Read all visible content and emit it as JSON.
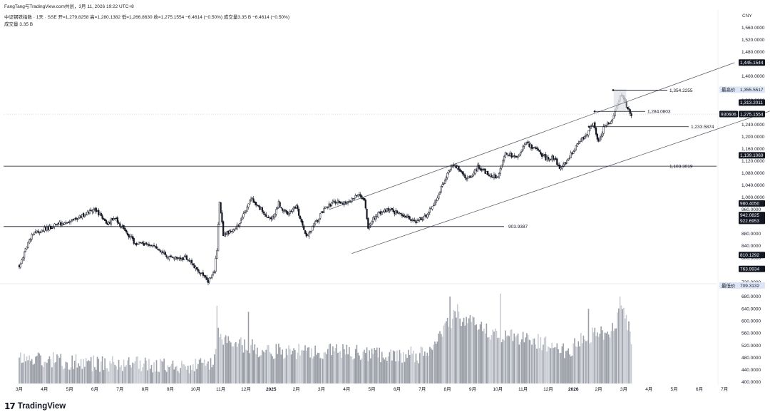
{
  "header": {
    "title": "FangTang与TradingView.com共创，3月 11, 2026 19:22 UTC+8",
    "ohlc": "中证钢铁指数 · 1天 · SSE  开=1,279.8258  高=1,280.1382  低=1,266.8630  收=1,275.1554  −6.4614 (−0.50%)  成交量3.35 B  −6.4614 (−0.50%)",
    "volume": "成交量  3.35 B",
    "currency": "CNY"
  },
  "footer": {
    "logo": "17",
    "brand": "TradingView"
  },
  "chart_data": {
    "type": "candlestick",
    "symbol": "930606",
    "price_axis": {
      "ticks": [
        "1,560.0000",
        "1,520.0000",
        "1,480.0000",
        "1,440.0000",
        "1,400.0000",
        "1,360.0000",
        "1,320.0000",
        "1,280.0000",
        "1,240.0000",
        "1,200.0000",
        "1,160.0000",
        "1,120.0000",
        "1,080.0000",
        "1,040.0000",
        "1,000.0000",
        "960.0000",
        "920.0000",
        "880.0000",
        "840.0000",
        "800.0000",
        "760.0000",
        "720.0000"
      ],
      "tick_values": [
        1560,
        1520,
        1480,
        1440,
        1400,
        1360,
        1320,
        1280,
        1240,
        1200,
        1160,
        1120,
        1080,
        1040,
        1000,
        960,
        920,
        880,
        840,
        800,
        760,
        720
      ],
      "range": [
        706,
        1580
      ]
    },
    "volume_axis": {
      "ticks": [
        "680.0000",
        "640.0000",
        "600.0000",
        "560.0000",
        "520.0000",
        "480.0000",
        "440.0000",
        "400.0000"
      ],
      "tick_values": [
        680,
        640,
        600,
        560,
        520,
        480,
        440,
        400
      ],
      "range": [
        396,
        700
      ]
    },
    "x_axis": {
      "labels": [
        "3月",
        "4月",
        "5月",
        "6月",
        "7月",
        "8月",
        "9月",
        "10月",
        "11月",
        "12月",
        "2025",
        "2月",
        "3月",
        "4月",
        "5月",
        "6月",
        "7月",
        "8月",
        "9月",
        "10月",
        "11月",
        "12月",
        "2026",
        "2月",
        "3月",
        "4月",
        "5月",
        "6月",
        "7月"
      ],
      "bold": [
        "2025",
        "2026"
      ]
    },
    "price_tags": [
      {
        "value": 1445.1544,
        "label": "1,445.1544",
        "style": "dark"
      },
      {
        "value": 1313.2011,
        "label": "1,313.2011",
        "style": "dark"
      },
      {
        "value": 1275.1554,
        "label": "1,275.1554",
        "style": "dark",
        "prefix": "930606"
      },
      {
        "value": 1139.1069,
        "label": "1,139.1069",
        "style": "dark"
      },
      {
        "value": 980.405,
        "label": "980.4050",
        "style": "dark"
      },
      {
        "value": 942.0825,
        "label": "942.0825",
        "style": "dark"
      },
      {
        "value": 922.6953,
        "label": "922.6953",
        "style": "dark"
      },
      {
        "value": 810.1292,
        "label": "810.1292",
        "style": "dark"
      },
      {
        "value": 763.9934,
        "label": "763.9934",
        "style": "dark"
      },
      {
        "value": 1355.5517,
        "label": "1,355.5517",
        "style": "light",
        "prefix": "最高价"
      },
      {
        "value": 709.3132,
        "label": "709.3132",
        "style": "light",
        "prefix": "最低价"
      }
    ],
    "horizontal_levels": [
      {
        "value": 1103.3019,
        "label": "1,103.3019",
        "extent": "full"
      },
      {
        "value": 903.9387,
        "label": "903.9387",
        "extent": "to-mid"
      },
      {
        "value": 1354.2255,
        "label": "1,354.2255",
        "extent": "ray"
      },
      {
        "value": 1284.0803,
        "label": "1,284.0803",
        "extent": "ray"
      },
      {
        "value": 1233.5874,
        "label": "1,233.5874",
        "extent": "ray"
      }
    ],
    "channel": {
      "upper": [
        {
          "month": 12.3,
          "value": 960
        },
        {
          "month": 28.4,
          "value": 1445
        }
      ],
      "lower": [
        {
          "month": 13.2,
          "value": 815
        },
        {
          "month": 29.8,
          "value": 1285
        }
      ]
    },
    "anchors": [
      {
        "month": 0.0,
        "value": 775
      },
      {
        "month": 0.5,
        "value": 880
      },
      {
        "month": 1.5,
        "value": 910
      },
      {
        "month": 2.4,
        "value": 935
      },
      {
        "month": 3.0,
        "value": 960
      },
      {
        "month": 3.5,
        "value": 915
      },
      {
        "month": 3.8,
        "value": 930
      },
      {
        "month": 4.2,
        "value": 890
      },
      {
        "month": 4.6,
        "value": 850
      },
      {
        "month": 5.4,
        "value": 840
      },
      {
        "month": 6.0,
        "value": 800
      },
      {
        "month": 6.6,
        "value": 800
      },
      {
        "month": 7.0,
        "value": 770
      },
      {
        "month": 7.4,
        "value": 735
      },
      {
        "month": 7.5,
        "value": 720
      },
      {
        "month": 7.75,
        "value": 760
      },
      {
        "month": 7.85,
        "value": 830
      },
      {
        "month": 7.95,
        "value": 990
      },
      {
        "month": 8.1,
        "value": 880
      },
      {
        "month": 8.5,
        "value": 890
      },
      {
        "month": 8.8,
        "value": 920
      },
      {
        "month": 9.2,
        "value": 1000
      },
      {
        "month": 9.6,
        "value": 960
      },
      {
        "month": 10.0,
        "value": 925
      },
      {
        "month": 10.3,
        "value": 980
      },
      {
        "month": 10.6,
        "value": 945
      },
      {
        "month": 11.0,
        "value": 970
      },
      {
        "month": 11.4,
        "value": 870
      },
      {
        "month": 11.8,
        "value": 920
      },
      {
        "month": 12.1,
        "value": 960
      },
      {
        "month": 12.5,
        "value": 985
      },
      {
        "month": 13.0,
        "value": 980
      },
      {
        "month": 13.4,
        "value": 1010
      },
      {
        "month": 13.7,
        "value": 995
      },
      {
        "month": 13.85,
        "value": 900
      },
      {
        "month": 14.1,
        "value": 935
      },
      {
        "month": 14.5,
        "value": 960
      },
      {
        "month": 15.0,
        "value": 950
      },
      {
        "month": 15.4,
        "value": 935
      },
      {
        "month": 15.8,
        "value": 920
      },
      {
        "month": 16.2,
        "value": 945
      },
      {
        "month": 16.6,
        "value": 1000
      },
      {
        "month": 16.9,
        "value": 1060
      },
      {
        "month": 17.2,
        "value": 1110
      },
      {
        "month": 17.5,
        "value": 1090
      },
      {
        "month": 17.8,
        "value": 1060
      },
      {
        "month": 18.2,
        "value": 1100
      },
      {
        "month": 18.6,
        "value": 1080
      },
      {
        "month": 19.0,
        "value": 1065
      },
      {
        "month": 19.3,
        "value": 1150
      },
      {
        "month": 19.7,
        "value": 1130
      },
      {
        "month": 20.1,
        "value": 1180
      },
      {
        "month": 20.5,
        "value": 1160
      },
      {
        "month": 20.9,
        "value": 1130
      },
      {
        "month": 21.2,
        "value": 1130
      },
      {
        "month": 21.5,
        "value": 1095
      },
      {
        "month": 21.8,
        "value": 1125
      },
      {
        "month": 22.2,
        "value": 1185
      },
      {
        "month": 22.5,
        "value": 1200
      },
      {
        "month": 22.8,
        "value": 1250
      },
      {
        "month": 23.0,
        "value": 1180
      },
      {
        "month": 23.2,
        "value": 1230
      },
      {
        "month": 23.5,
        "value": 1250
      },
      {
        "month": 23.9,
        "value": 1340
      },
      {
        "month": 24.1,
        "value": 1300
      },
      {
        "month": 24.3,
        "value": 1275
      }
    ],
    "volume_anchors": [
      {
        "month": 0.0,
        "value": 470
      },
      {
        "month": 3.5,
        "value": 450
      },
      {
        "month": 7.7,
        "value": 445
      },
      {
        "month": 7.9,
        "value": 560
      },
      {
        "month": 8.2,
        "value": 530
      },
      {
        "month": 9.5,
        "value": 500
      },
      {
        "month": 10.5,
        "value": 490
      },
      {
        "month": 12.0,
        "value": 495
      },
      {
        "month": 14.0,
        "value": 485
      },
      {
        "month": 16.3,
        "value": 480
      },
      {
        "month": 16.8,
        "value": 560
      },
      {
        "month": 17.3,
        "value": 610
      },
      {
        "month": 18.5,
        "value": 560
      },
      {
        "month": 19.5,
        "value": 540
      },
      {
        "month": 20.5,
        "value": 530
      },
      {
        "month": 21.8,
        "value": 490
      },
      {
        "month": 22.5,
        "value": 540
      },
      {
        "month": 23.5,
        "value": 560
      },
      {
        "month": 24.0,
        "value": 640
      },
      {
        "month": 24.3,
        "value": 530
      }
    ],
    "volume_spikes": [
      {
        "month": 7.85,
        "value": 650
      },
      {
        "month": 9.1,
        "value": 630
      },
      {
        "month": 17.1,
        "value": 680
      },
      {
        "month": 17.4,
        "value": 655
      },
      {
        "month": 19.1,
        "value": 690
      },
      {
        "month": 22.6,
        "value": 640
      },
      {
        "month": 23.85,
        "value": 680
      }
    ],
    "highlight": {
      "from_month": 23.6,
      "to_month": 24.1,
      "from_value": 1285,
      "to_value": 1358
    }
  }
}
